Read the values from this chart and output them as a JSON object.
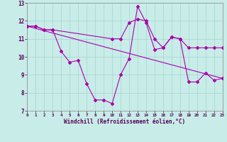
{
  "xlabel": "Windchill (Refroidissement éolien,°C)",
  "background_color": "#c8ece8",
  "grid_color": "#a8d4cc",
  "line_color": "#aa00aa",
  "xlim": [
    0,
    23
  ],
  "ylim": [
    7,
    13
  ],
  "xticks": [
    0,
    1,
    2,
    3,
    4,
    5,
    6,
    7,
    8,
    9,
    10,
    11,
    12,
    13,
    14,
    15,
    16,
    17,
    18,
    19,
    20,
    21,
    22,
    23
  ],
  "yticks": [
    7,
    8,
    9,
    10,
    11,
    12,
    13
  ],
  "line1_x": [
    0,
    1,
    2,
    3,
    4,
    5,
    6,
    7,
    8,
    9,
    10,
    11,
    12,
    13,
    14,
    15,
    16,
    17,
    18,
    19,
    20,
    21,
    22,
    23
  ],
  "line1_y": [
    11.7,
    11.7,
    11.5,
    11.5,
    10.3,
    9.7,
    9.8,
    8.5,
    7.6,
    7.6,
    7.4,
    9.0,
    9.9,
    12.8,
    11.9,
    10.4,
    10.5,
    11.1,
    11.0,
    8.6,
    8.6,
    9.1,
    8.7,
    8.8
  ],
  "line2_x": [
    0,
    1,
    2,
    3,
    10,
    11,
    12,
    13,
    14,
    15,
    16,
    17,
    18,
    19,
    20,
    21,
    22,
    23
  ],
  "line2_y": [
    11.7,
    11.7,
    11.5,
    11.5,
    11.0,
    11.0,
    11.9,
    12.1,
    12.0,
    11.0,
    10.5,
    11.1,
    11.0,
    10.5,
    10.5,
    10.5,
    10.5,
    10.5
  ],
  "line3_x": [
    0,
    23
  ],
  "line3_y": [
    11.7,
    8.8
  ]
}
